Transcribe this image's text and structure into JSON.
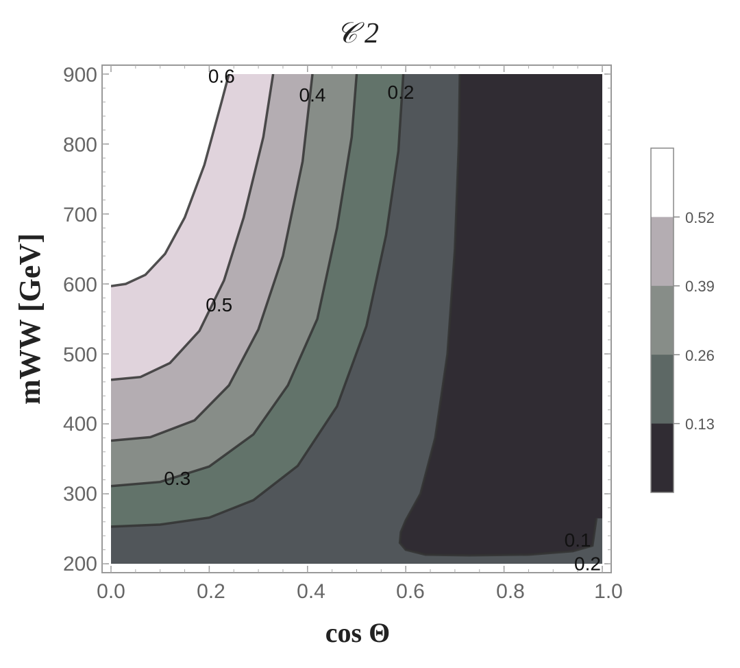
{
  "chart_data": {
    "type": "contour",
    "title": "𝒞 2",
    "xlabel": "cos Θ",
    "ylabel": "mWW [GeV]",
    "xlim": [
      0.0,
      1.0
    ],
    "ylim": [
      190,
      910
    ],
    "x_ticks": [
      "0.0",
      "0.2",
      "0.4",
      "0.6",
      "0.8",
      "1.0"
    ],
    "y_ticks": [
      "200",
      "300",
      "400",
      "500",
      "600",
      "700",
      "800",
      "900"
    ],
    "colors": {
      "band_lt_0_1": "#302c33",
      "band_0_1_0_2": "#51565a",
      "band_0_2_0_3": "#62736a",
      "band_0_3_0_4": "#878d88",
      "band_0_4_0_5": "#b4adb2",
      "band_0_5_0_6": "#e0d3dc",
      "band_gt_0_6": "#ffffff",
      "contour_line": "#333333"
    },
    "contours": [
      {
        "level": 0.6,
        "points": [
          [
            0,
            597
          ],
          [
            0.03,
            600
          ],
          [
            0.07,
            613
          ],
          [
            0.11,
            643
          ],
          [
            0.15,
            695
          ],
          [
            0.19,
            770
          ],
          [
            0.225,
            860
          ],
          [
            0.24,
            900
          ]
        ]
      },
      {
        "level": 0.5,
        "points": [
          [
            0,
            463
          ],
          [
            0.06,
            467
          ],
          [
            0.12,
            487
          ],
          [
            0.18,
            533
          ],
          [
            0.23,
            605
          ],
          [
            0.27,
            695
          ],
          [
            0.31,
            810
          ],
          [
            0.33,
            900
          ]
        ]
      },
      {
        "level": 0.4,
        "points": [
          [
            0,
            376
          ],
          [
            0.08,
            381
          ],
          [
            0.17,
            405
          ],
          [
            0.24,
            455
          ],
          [
            0.3,
            535
          ],
          [
            0.35,
            640
          ],
          [
            0.39,
            775
          ],
          [
            0.41,
            900
          ]
        ]
      },
      {
        "level": 0.3,
        "points": [
          [
            0,
            311
          ],
          [
            0.1,
            317
          ],
          [
            0.2,
            339
          ],
          [
            0.29,
            385
          ],
          [
            0.36,
            455
          ],
          [
            0.42,
            550
          ],
          [
            0.46,
            680
          ],
          [
            0.49,
            810
          ],
          [
            0.5,
            900
          ]
        ]
      },
      {
        "level": 0.2,
        "points": [
          [
            0,
            253
          ],
          [
            0.1,
            256
          ],
          [
            0.2,
            266
          ],
          [
            0.29,
            291
          ],
          [
            0.38,
            340
          ],
          [
            0.46,
            425
          ],
          [
            0.52,
            540
          ],
          [
            0.56,
            670
          ],
          [
            0.585,
            790
          ],
          [
            0.595,
            900
          ]
        ]
      },
      {
        "level": 0.1,
        "points": [
          [
            0.71,
            900
          ],
          [
            0.708,
            800
          ],
          [
            0.7,
            650
          ],
          [
            0.685,
            500
          ],
          [
            0.66,
            380
          ],
          [
            0.63,
            300
          ],
          [
            0.6,
            262
          ],
          [
            0.59,
            245
          ],
          [
            0.588,
            230
          ],
          [
            0.6,
            220
          ],
          [
            0.64,
            213
          ],
          [
            0.73,
            212
          ],
          [
            0.85,
            213
          ],
          [
            0.94,
            218
          ],
          [
            0.98,
            226
          ],
          [
            0.988,
            265
          ]
        ]
      }
    ],
    "contour_labels": [
      {
        "text": "0.6",
        "x": 0.225,
        "y": 895
      },
      {
        "text": "0.4",
        "x": 0.41,
        "y": 868
      },
      {
        "text": "0.2",
        "x": 0.59,
        "y": 872
      },
      {
        "text": "0.5",
        "x": 0.22,
        "y": 568
      },
      {
        "text": "0.3",
        "x": 0.135,
        "y": 320
      },
      {
        "text": "0.1",
        "x": 0.95,
        "y": 232
      },
      {
        "text": "0.2",
        "x": 0.97,
        "y": 198
      }
    ],
    "colorbar": {
      "ticks": [
        "0.52",
        "0.39",
        "0.26",
        "0.13"
      ],
      "band_colors": [
        "#ffffff",
        "#b4adb2",
        "#878d88",
        "#5d6865",
        "#302c33"
      ]
    }
  }
}
